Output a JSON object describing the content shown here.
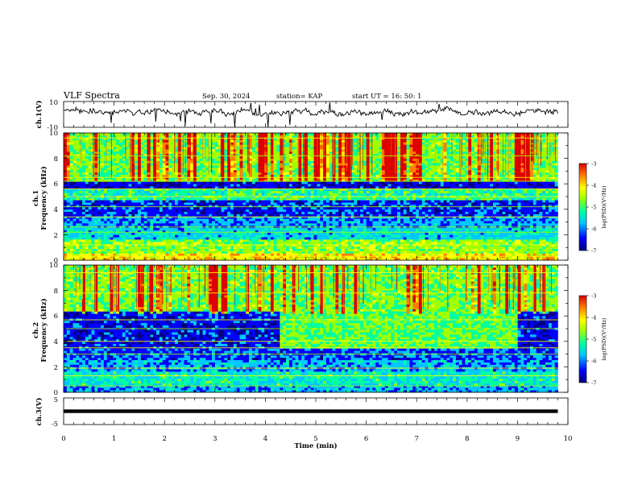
{
  "header": {
    "title": "VLF Spectra",
    "date": "Sep. 30, 2024",
    "station": "station= KAP",
    "start": "start  UT  =   16: 50: 1"
  },
  "colors": {
    "spectrum_scale": [
      "#00007f",
      "#0000ff",
      "#00c8ff",
      "#00ff9f",
      "#9fff00",
      "#ffff00",
      "#ff7f00",
      "#dd0000"
    ]
  },
  "chart_data": [
    {
      "type": "line",
      "panel": "ch1-waveform",
      "ylabel": "ch.1(V)",
      "ylim": [
        -10,
        10
      ],
      "yticks": [
        "10",
        "-10"
      ],
      "xlim": [
        0,
        10
      ],
      "mean_level": 2,
      "fluctuation_amplitude": 3,
      "data_span_min": [
        0,
        9.8
      ]
    },
    {
      "type": "heatmap",
      "panel": "ch1-spectrogram",
      "ylabel": "ch.1\nFrequency  (kHz)",
      "ylim": [
        0,
        10
      ],
      "yticks": [
        "0",
        "2",
        "4",
        "6",
        "8",
        "10"
      ],
      "xlim": [
        0,
        10
      ],
      "data_span_min": [
        0,
        9.8
      ],
      "colorbar": {
        "label": "log(PSD)(V²/Hz)",
        "range": [
          -7,
          -3
        ],
        "ticks": [
          "-3",
          "-4",
          "-5",
          "-6",
          "-7"
        ]
      },
      "bands_khz_logpsd": [
        {
          "from": 0,
          "to": 0.5,
          "value": -4.2
        },
        {
          "from": 0.5,
          "to": 1.6,
          "value": -4.8
        },
        {
          "from": 1.6,
          "to": 2.6,
          "value": -5.6
        },
        {
          "from": 2.6,
          "to": 3.5,
          "value": -5.9
        },
        {
          "from": 3.5,
          "to": 4.8,
          "value": -6.2
        },
        {
          "from": 4.8,
          "to": 5.6,
          "value": -5.2
        },
        {
          "from": 5.6,
          "to": 6.2,
          "value": -6.4
        },
        {
          "from": 6.2,
          "to": 10,
          "value": -4.9
        }
      ],
      "horizontal_lines_khz": [
        0.3,
        0.7,
        1.2,
        2.2,
        2.6,
        3.4,
        4.2,
        5.0,
        5.6,
        6.2,
        6.5,
        8.2,
        9.6
      ]
    },
    {
      "type": "heatmap",
      "panel": "ch2-spectrogram",
      "ylabel": "ch.2\nFrequency  (kHz)",
      "ylim": [
        0,
        10
      ],
      "yticks": [
        "0",
        "2",
        "4",
        "6",
        "8",
        "10"
      ],
      "xlim": [
        0,
        10
      ],
      "data_span_min": [
        0,
        9.8
      ],
      "colorbar": {
        "label": "log(PSD)(V²/Hz)",
        "range": [
          -7,
          -3
        ],
        "ticks": [
          "-3",
          "-4",
          "-5",
          "-6",
          "-7"
        ]
      },
      "bands_khz_logpsd": [
        {
          "from": 0,
          "to": 0.6,
          "value": -5.8
        },
        {
          "from": 0.6,
          "to": 1.6,
          "value": -5.4
        },
        {
          "from": 1.6,
          "to": 2.6,
          "value": -5.8
        },
        {
          "from": 2.6,
          "to": 3.5,
          "value": -6.1
        },
        {
          "from": 3.5,
          "to": 6.4,
          "value": -6.3
        },
        {
          "from": 6.4,
          "to": 10,
          "value": -4.9
        }
      ],
      "elevated_region": {
        "t_from": 4.3,
        "t_to": 9.0,
        "f_from": 3.5,
        "f_to": 6.4,
        "value": -5.0
      },
      "horizontal_lines_khz": [
        0.5,
        1.3,
        1.9,
        3.0,
        3.5,
        4.0,
        5.0,
        5.7,
        7.8,
        9.4
      ]
    },
    {
      "type": "line",
      "panel": "ch3-waveform",
      "ylabel": "ch.3(V)",
      "ylim": [
        -5,
        5
      ],
      "yticks": [
        "5",
        "0",
        "-5"
      ],
      "xlim": [
        0,
        10
      ],
      "constant_level": 0,
      "data_span_min": [
        0,
        9.8
      ]
    }
  ],
  "xaxis": {
    "label": "Time  (min)",
    "ticks": [
      "0",
      "1",
      "2",
      "3",
      "4",
      "5",
      "6",
      "7",
      "8",
      "9",
      "10"
    ]
  }
}
